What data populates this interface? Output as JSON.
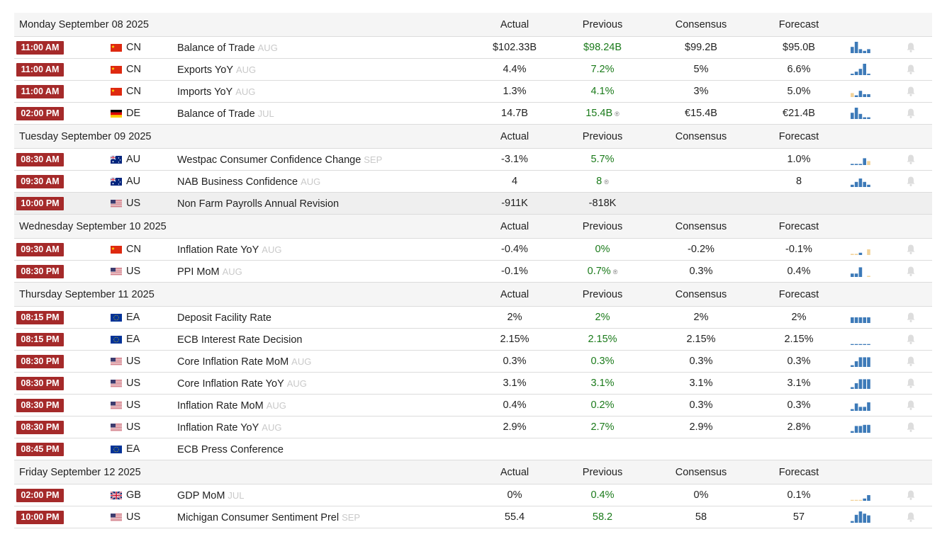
{
  "columns": {
    "actual": "Actual",
    "previous": "Previous",
    "consensus": "Consensus",
    "forecast": "Forecast"
  },
  "colors": {
    "time_badge": "#a52a2a",
    "green": "#1a7a1a",
    "spark_blue": "#3d7ab8",
    "spark_orange": "#f2d39a",
    "reference": "#c9c9c9"
  },
  "days": [
    {
      "date": "Monday September 08 2025",
      "events": [
        {
          "time": "11:00 AM",
          "country": "CN",
          "event": "Balance of Trade",
          "reference": "AUG",
          "actual": "$102.33B",
          "previous": "$98.24B",
          "previous_revised": false,
          "consensus": "$99.2B",
          "forecast": "$95.0B",
          "spark": {
            "bars": [
              0.55,
              1,
              0.35,
              0.2,
              0.35
            ],
            "colors": [
              "b",
              "b",
              "b",
              "b",
              "b"
            ]
          }
        },
        {
          "time": "11:00 AM",
          "country": "CN",
          "event": "Exports YoY",
          "reference": "AUG",
          "actual": "4.4%",
          "previous": "7.2%",
          "previous_revised": false,
          "consensus": "5%",
          "forecast": "6.6%",
          "spark": {
            "bars": [
              0.12,
              0.3,
              0.55,
              1,
              0.12
            ],
            "colors": [
              "b",
              "b",
              "b",
              "b",
              "b"
            ]
          }
        },
        {
          "time": "11:00 AM",
          "country": "CN",
          "event": "Imports YoY",
          "reference": "AUG",
          "actual": "1.3%",
          "previous": "4.1%",
          "previous_revised": false,
          "consensus": "3%",
          "forecast": "5.0%",
          "spark": {
            "bars": [
              0.35,
              0.15,
              0.55,
              0.25,
              0.25
            ],
            "colors": [
              "o",
              "b",
              "b",
              "b",
              "b"
            ]
          }
        },
        {
          "time": "02:00 PM",
          "country": "DE",
          "event": "Balance of Trade",
          "reference": "JUL",
          "actual": "14.7B",
          "previous": "15.4B",
          "previous_revised": true,
          "consensus": "€15.4B",
          "forecast": "€21.4B",
          "spark": {
            "bars": [
              0.55,
              1,
              0.45,
              0.15,
              0.15
            ],
            "colors": [
              "b",
              "b",
              "b",
              "b",
              "b"
            ]
          }
        }
      ]
    },
    {
      "date": "Tuesday September 09 2025",
      "events": [
        {
          "time": "08:30 AM",
          "country": "AU",
          "event": "Westpac Consumer Confidence Change",
          "reference": "SEP",
          "actual": "-3.1%",
          "previous": "5.7%",
          "previous_revised": false,
          "consensus": "",
          "forecast": "1.0%",
          "spark": {
            "bars": [
              0.1,
              0.1,
              0.1,
              0.6,
              0.35
            ],
            "colors": [
              "b",
              "b",
              "b",
              "b",
              "o"
            ]
          }
        },
        {
          "time": "09:30 AM",
          "country": "AU",
          "event": "NAB Business Confidence",
          "reference": "AUG",
          "actual": "4",
          "previous": "8",
          "previous_revised": true,
          "consensus": "",
          "forecast": "8",
          "spark": {
            "bars": [
              0.2,
              0.45,
              0.75,
              0.45,
              0.2
            ],
            "colors": [
              "b",
              "b",
              "b",
              "b",
              "b"
            ]
          }
        },
        {
          "time": "10:00 PM",
          "country": "US",
          "event": "Non Farm Payrolls Annual Revision",
          "reference": "",
          "actual": "-911K",
          "previous": "-818K",
          "previous_revised": false,
          "consensus": "",
          "forecast": "",
          "highlight": true
        }
      ]
    },
    {
      "date": "Wednesday September 10 2025",
      "events": [
        {
          "time": "09:30 AM",
          "country": "CN",
          "event": "Inflation Rate YoY",
          "reference": "AUG",
          "actual": "-0.4%",
          "previous": "0%",
          "previous_revised": false,
          "consensus": "-0.2%",
          "forecast": "-0.1%",
          "spark": {
            "bars": [
              0.1,
              0.1,
              0.2,
              0,
              0.5
            ],
            "colors": [
              "o",
              "o",
              "b",
              "b",
              "o"
            ]
          }
        },
        {
          "time": "08:30 PM",
          "country": "US",
          "event": "PPI MoM",
          "reference": "AUG",
          "actual": "-0.1%",
          "previous": "0.7%",
          "previous_revised": true,
          "consensus": "0.3%",
          "forecast": "0.4%",
          "spark": {
            "bars": [
              0.3,
              0.3,
              0.85,
              0,
              0.1
            ],
            "colors": [
              "b",
              "b",
              "b",
              "b",
              "o"
            ]
          }
        }
      ]
    },
    {
      "date": "Thursday September 11 2025",
      "events": [
        {
          "time": "08:15 PM",
          "country": "EA",
          "event": "Deposit Facility Rate",
          "reference": "",
          "actual": "2%",
          "previous": "2%",
          "previous_revised": false,
          "consensus": "2%",
          "forecast": "2%",
          "spark": {
            "bars": [
              0.5,
              0.5,
              0.5,
              0.5,
              0.5
            ],
            "colors": [
              "b",
              "b",
              "b",
              "b",
              "b"
            ]
          }
        },
        {
          "time": "08:15 PM",
          "country": "EA",
          "event": "ECB Interest Rate Decision",
          "reference": "",
          "actual": "2.15%",
          "previous": "2.15%",
          "previous_revised": false,
          "consensus": "2.15%",
          "forecast": "2.15%",
          "spark": {
            "bars": [
              0.08,
              0.08,
              0.08,
              0.08,
              0.08
            ],
            "colors": [
              "b",
              "b",
              "b",
              "b",
              "b"
            ]
          }
        },
        {
          "time": "08:30 PM",
          "country": "US",
          "event": "Core Inflation Rate MoM",
          "reference": "AUG",
          "actual": "0.3%",
          "previous": "0.3%",
          "previous_revised": false,
          "consensus": "0.3%",
          "forecast": "0.3%",
          "spark": {
            "bars": [
              0.15,
              0.5,
              0.85,
              0.85,
              0.85
            ],
            "colors": [
              "b",
              "b",
              "b",
              "b",
              "b"
            ]
          }
        },
        {
          "time": "08:30 PM",
          "country": "US",
          "event": "Core Inflation Rate YoY",
          "reference": "AUG",
          "actual": "3.1%",
          "previous": "3.1%",
          "previous_revised": false,
          "consensus": "3.1%",
          "forecast": "3.1%",
          "spark": {
            "bars": [
              0.15,
              0.5,
              0.85,
              0.85,
              0.85
            ],
            "colors": [
              "b",
              "b",
              "b",
              "b",
              "b"
            ]
          }
        },
        {
          "time": "08:30 PM",
          "country": "US",
          "event": "Inflation Rate MoM",
          "reference": "AUG",
          "actual": "0.4%",
          "previous": "0.2%",
          "previous_revised": false,
          "consensus": "0.3%",
          "forecast": "0.3%",
          "spark": {
            "bars": [
              0.15,
              0.65,
              0.35,
              0.35,
              0.75
            ],
            "colors": [
              "b",
              "b",
              "b",
              "b",
              "b"
            ]
          }
        },
        {
          "time": "08:30 PM",
          "country": "US",
          "event": "Inflation Rate YoY",
          "reference": "AUG",
          "actual": "2.9%",
          "previous": "2.7%",
          "previous_revised": false,
          "consensus": "2.9%",
          "forecast": "2.8%",
          "spark": {
            "bars": [
              0.15,
              0.6,
              0.6,
              0.7,
              0.7
            ],
            "colors": [
              "b",
              "b",
              "b",
              "b",
              "b"
            ]
          }
        },
        {
          "time": "08:45 PM",
          "country": "EA",
          "event": "ECB Press Conference",
          "reference": "",
          "actual": "",
          "previous": "",
          "previous_revised": false,
          "consensus": "",
          "forecast": "",
          "no_alert": true
        }
      ]
    },
    {
      "date": "Friday September 12 2025",
      "events": [
        {
          "time": "02:00 PM",
          "country": "GB",
          "event": "GDP MoM",
          "reference": "JUL",
          "actual": "0%",
          "previous": "0.4%",
          "previous_revised": false,
          "consensus": "0%",
          "forecast": "0.1%",
          "spark": {
            "bars": [
              0.08,
              0.08,
              0.08,
              0.2,
              0.5
            ],
            "colors": [
              "o",
              "o",
              "o",
              "b",
              "b"
            ]
          }
        },
        {
          "time": "10:00 PM",
          "country": "US",
          "event": "Michigan Consumer Sentiment Prel",
          "reference": "SEP",
          "actual": "55.4",
          "previous": "58.2",
          "previous_revised": false,
          "consensus": "58",
          "forecast": "57",
          "spark": {
            "bars": [
              0.15,
              0.7,
              1,
              0.8,
              0.65
            ],
            "colors": [
              "b",
              "b",
              "b",
              "b",
              "b"
            ]
          }
        }
      ]
    }
  ]
}
